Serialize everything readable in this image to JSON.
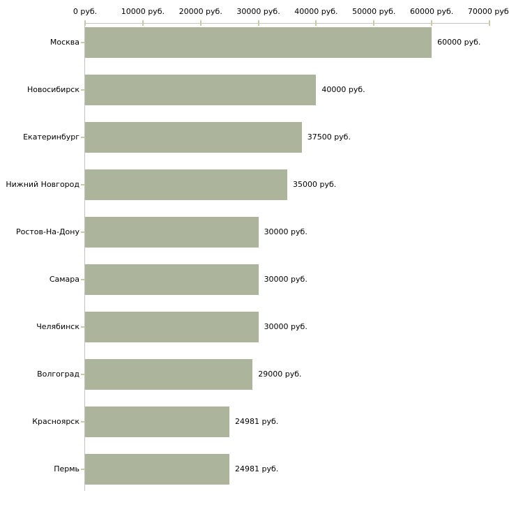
{
  "chart_data": {
    "type": "bar",
    "orientation": "horizontal",
    "title": "",
    "xlabel": "",
    "ylabel": "",
    "unit": "руб.",
    "grid": false,
    "legend": false,
    "categories": [
      "Москва",
      "Новосибирск",
      "Екатеринбург",
      "Нижний Новгород",
      "Ростов-На-Дону",
      "Самара",
      "Челябинск",
      "Волгоград",
      "Красноярск",
      "Пермь"
    ],
    "values": [
      60000,
      40000,
      37500,
      35000,
      30000,
      30000,
      30000,
      29000,
      24981,
      24981
    ],
    "value_labels": [
      "60000 руб.",
      "40000 руб.",
      "37500 руб.",
      "35000 руб.",
      "30000 руб.",
      "30000 руб.",
      "30000 руб.",
      "29000 руб.",
      "24981 руб.",
      "24981 руб."
    ],
    "x_axis": {
      "position": "top",
      "xlim": [
        0,
        70000
      ],
      "ticks": [
        0,
        10000,
        20000,
        30000,
        40000,
        50000,
        60000,
        70000
      ],
      "tick_labels": [
        "0 руб.",
        "10000 руб.",
        "20000 руб.",
        "30000 руб.",
        "40000 руб.",
        "50000 руб.",
        "60000 руб.",
        "70000 руб."
      ]
    },
    "colors": {
      "bar": "#adb49c",
      "axis_line": "#c3c3c3",
      "tick_mark": "#c9c9a3",
      "text": "#000000"
    }
  }
}
